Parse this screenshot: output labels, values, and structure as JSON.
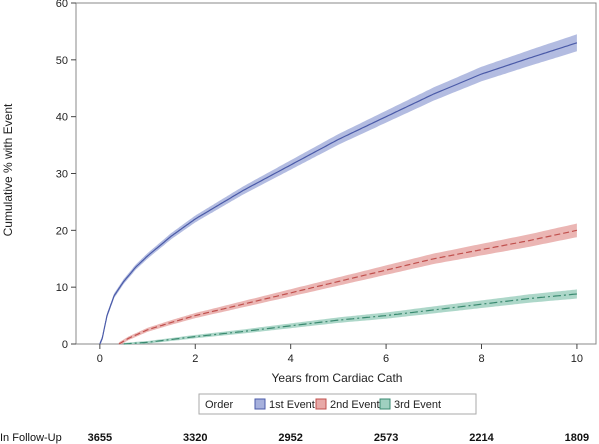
{
  "chart_data": {
    "type": "line",
    "xlabel": "Years from Cardiac Cath",
    "ylabel": "Cumulative % with Event",
    "xlim": [
      -0.5,
      10.4
    ],
    "ylim": [
      0,
      60
    ],
    "x_ticks": [
      0,
      2,
      4,
      6,
      8,
      10
    ],
    "y_ticks": [
      0,
      10,
      20,
      30,
      40,
      50,
      60
    ],
    "legend": {
      "title": "Order",
      "placement": "bottom"
    },
    "series": [
      {
        "name": "1st Event",
        "color": "#4a5aa8",
        "band_color": "#a6b0dc",
        "dash": "solid",
        "x": [
          0,
          0.05,
          0.15,
          0.3,
          0.5,
          0.75,
          1,
          1.5,
          2,
          2.5,
          3,
          4,
          5,
          6,
          7,
          8,
          9,
          10
        ],
        "y": [
          0,
          1,
          5,
          8.5,
          11,
          13.5,
          15.5,
          19,
          22,
          24.5,
          27,
          31.5,
          36,
          40,
          44,
          47.5,
          50.3,
          53
        ],
        "band_halfwidth": 1.5
      },
      {
        "name": "2nd Event",
        "color": "#c0504d",
        "band_color": "#e8a9a7",
        "dash": "dashed",
        "x": [
          0.4,
          0.6,
          1,
          1.5,
          2,
          3,
          4,
          5,
          6,
          7,
          8,
          9,
          10
        ],
        "y": [
          0,
          1,
          2.5,
          3.8,
          5,
          7,
          9,
          11,
          13,
          15,
          16.6,
          18.2,
          20
        ],
        "band_halfwidth": 1.2
      },
      {
        "name": "3rd Event",
        "color": "#3a8a70",
        "band_color": "#9fd0c0",
        "dash": "dashdot",
        "x": [
          0.5,
          1,
          2,
          3,
          4,
          5,
          6,
          7,
          8,
          9,
          10
        ],
        "y": [
          0,
          0.3,
          1.3,
          2.2,
          3.2,
          4.2,
          5,
          6,
          7,
          8,
          8.8
        ],
        "band_halfwidth": 0.8
      }
    ],
    "follow_up": {
      "label": "In Follow-Up",
      "x": [
        0,
        2,
        4,
        6,
        8,
        10
      ],
      "counts": [
        "3655",
        "3320",
        "2952",
        "2573",
        "2214",
        "1809"
      ]
    }
  }
}
